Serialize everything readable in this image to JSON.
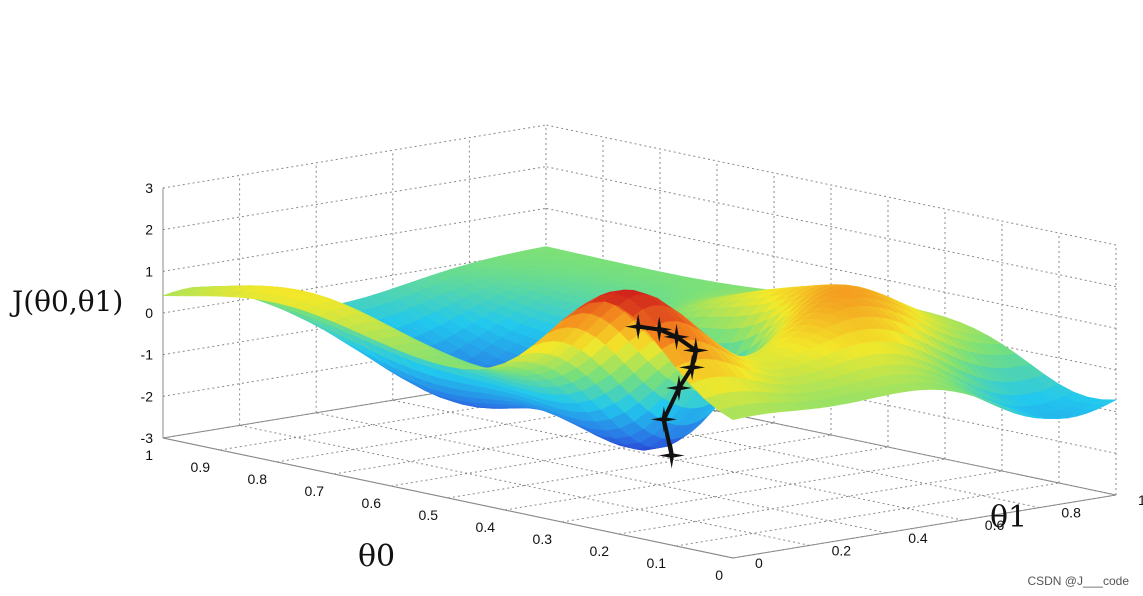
{
  "chart_data": {
    "type": "surface",
    "zlabel": "J(θ0,θ1)",
    "xlabel": "θ0",
    "ylabel": "θ1",
    "xlim": [
      0,
      1
    ],
    "ylim": [
      0,
      1
    ],
    "zlim": [
      -3,
      3
    ],
    "x_ticks": [
      "1",
      "0.9",
      "0.8",
      "0.7",
      "0.6",
      "0.5",
      "0.4",
      "0.3",
      "0.2",
      "0.1",
      "0"
    ],
    "y_ticks": [
      "0",
      "0.2",
      "0.4",
      "0.6",
      "0.8",
      "1"
    ],
    "z_ticks": [
      "3",
      "2",
      "1",
      "0",
      "-1",
      "-2",
      "-3"
    ],
    "colormap": [
      "#2a1cc8",
      "#2a7ae6",
      "#22c8ee",
      "#7ae07a",
      "#f3e82a",
      "#f58a1e",
      "#d0201c"
    ],
    "path_color": "#111111",
    "gradient_descent_path": [
      {
        "x": 0.2,
        "y": 0.05,
        "z": 1.9
      },
      {
        "x": 0.21,
        "y": 0.12,
        "z": 1.7
      },
      {
        "x": 0.22,
        "y": 0.18,
        "z": 1.4
      },
      {
        "x": 0.24,
        "y": 0.26,
        "z": 0.9
      },
      {
        "x": 0.28,
        "y": 0.31,
        "z": 0.3
      },
      {
        "x": 0.33,
        "y": 0.35,
        "z": -0.4
      },
      {
        "x": 0.39,
        "y": 0.4,
        "z": -1.4
      },
      {
        "x": 0.41,
        "y": 0.45,
        "z": -2.4
      }
    ]
  },
  "watermark": "CSDN @J___code"
}
